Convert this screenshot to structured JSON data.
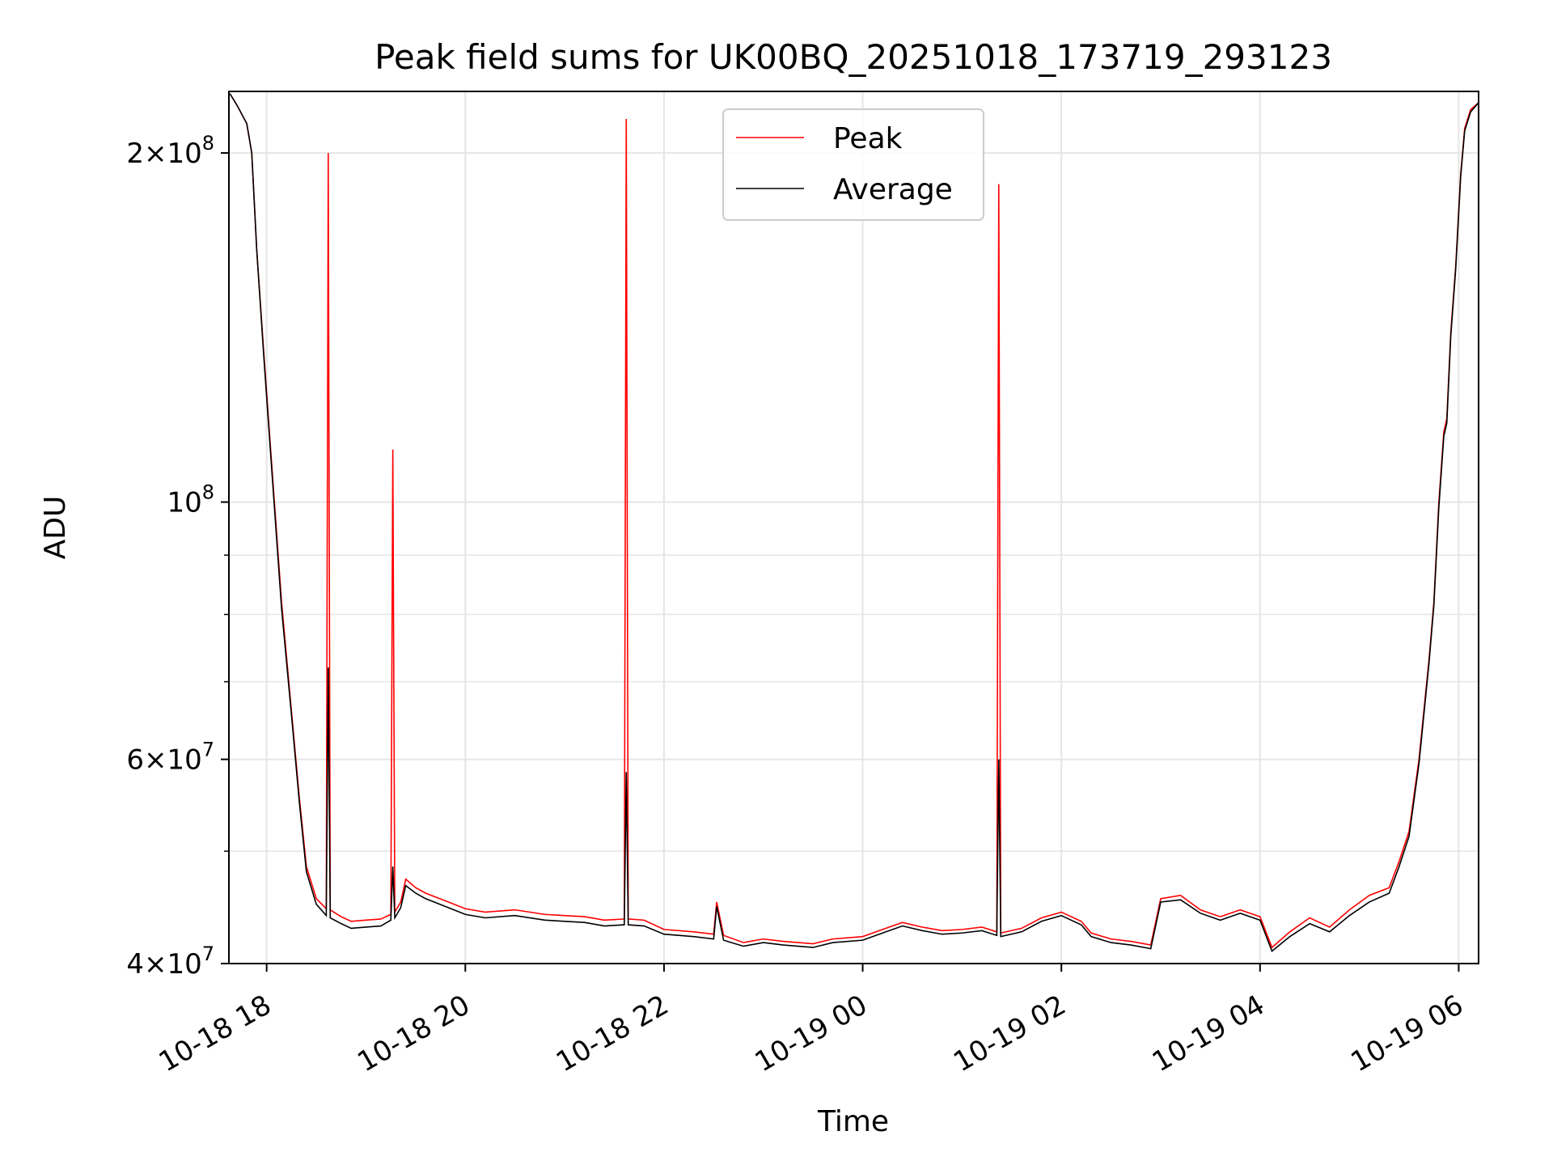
{
  "chart_data": {
    "type": "line",
    "title": "Peak field sums for UK00BQ_20251018_173719_293123",
    "xlabel": "Time",
    "ylabel": "ADU",
    "yscale": "log",
    "x_unit": "hours since 2025-10-18 00:00",
    "xlim": [
      17.62,
      30.2
    ],
    "ylim": [
      40000000,
      226000000
    ],
    "grid": true,
    "legend_position": "upper center",
    "x_ticks": [
      {
        "value": 18,
        "label": "10-18 18"
      },
      {
        "value": 20,
        "label": "10-18 20"
      },
      {
        "value": 22,
        "label": "10-18 22"
      },
      {
        "value": 24,
        "label": "10-19 00"
      },
      {
        "value": 26,
        "label": "10-19 02"
      },
      {
        "value": 28,
        "label": "10-19 04"
      },
      {
        "value": 30,
        "label": "10-19 06"
      }
    ],
    "y_major_ticks": [
      {
        "value": 40000000,
        "mantissa": "4",
        "exponent": "7"
      },
      {
        "value": 60000000,
        "mantissa": "6",
        "exponent": "7"
      },
      {
        "value": 100000000,
        "mantissa": "",
        "exponent": "8"
      },
      {
        "value": 200000000,
        "mantissa": "2",
        "exponent": "8"
      }
    ],
    "y_minor_gridlines": [
      50000000,
      70000000,
      80000000,
      90000000
    ],
    "series": [
      {
        "name": "Peak",
        "color": "#ff0000",
        "points": [
          [
            17.63,
            225000000
          ],
          [
            17.7,
            220000000
          ],
          [
            17.8,
            212000000
          ],
          [
            17.85,
            200000000
          ],
          [
            17.9,
            165000000
          ],
          [
            17.97,
            135000000
          ],
          [
            18.05,
            108000000
          ],
          [
            18.15,
            82000000
          ],
          [
            18.25,
            66000000
          ],
          [
            18.33,
            55500000
          ],
          [
            18.4,
            48500000
          ],
          [
            18.5,
            45500000
          ],
          [
            18.6,
            44600000
          ],
          [
            18.62,
            200000000
          ],
          [
            18.64,
            44500000
          ],
          [
            18.75,
            43900000
          ],
          [
            18.85,
            43500000
          ],
          [
            19.0,
            43600000
          ],
          [
            19.15,
            43700000
          ],
          [
            19.25,
            44100000
          ],
          [
            19.27,
            111000000
          ],
          [
            19.29,
            44300000
          ],
          [
            19.35,
            45200000
          ],
          [
            19.4,
            47300000
          ],
          [
            19.5,
            46500000
          ],
          [
            19.6,
            46000000
          ],
          [
            19.8,
            45300000
          ],
          [
            20.0,
            44600000
          ],
          [
            20.2,
            44300000
          ],
          [
            20.5,
            44500000
          ],
          [
            20.8,
            44100000
          ],
          [
            21.0,
            44000000
          ],
          [
            21.2,
            43900000
          ],
          [
            21.4,
            43600000
          ],
          [
            21.6,
            43700000
          ],
          [
            21.62,
            214000000
          ],
          [
            21.64,
            43700000
          ],
          [
            21.8,
            43600000
          ],
          [
            22.0,
            42800000
          ],
          [
            22.3,
            42600000
          ],
          [
            22.5,
            42400000
          ],
          [
            22.53,
            45200000
          ],
          [
            22.6,
            42300000
          ],
          [
            22.8,
            41700000
          ],
          [
            23.0,
            42000000
          ],
          [
            23.2,
            41800000
          ],
          [
            23.5,
            41600000
          ],
          [
            23.7,
            42000000
          ],
          [
            24.0,
            42200000
          ],
          [
            24.2,
            42800000
          ],
          [
            24.4,
            43400000
          ],
          [
            24.6,
            43000000
          ],
          [
            24.8,
            42700000
          ],
          [
            25.0,
            42800000
          ],
          [
            25.2,
            43000000
          ],
          [
            25.35,
            42600000
          ],
          [
            25.37,
            188000000
          ],
          [
            25.39,
            42500000
          ],
          [
            25.6,
            42900000
          ],
          [
            25.8,
            43800000
          ],
          [
            26.0,
            44300000
          ],
          [
            26.2,
            43500000
          ],
          [
            26.3,
            42500000
          ],
          [
            26.5,
            42000000
          ],
          [
            26.7,
            41800000
          ],
          [
            26.9,
            41500000
          ],
          [
            27.0,
            45500000
          ],
          [
            27.2,
            45800000
          ],
          [
            27.4,
            44500000
          ],
          [
            27.6,
            43900000
          ],
          [
            27.8,
            44500000
          ],
          [
            28.0,
            43900000
          ],
          [
            28.12,
            41300000
          ],
          [
            28.3,
            42600000
          ],
          [
            28.5,
            43800000
          ],
          [
            28.7,
            43000000
          ],
          [
            28.9,
            44500000
          ],
          [
            29.1,
            45800000
          ],
          [
            29.3,
            46500000
          ],
          [
            29.4,
            49000000
          ],
          [
            29.5,
            52000000
          ],
          [
            29.6,
            60000000
          ],
          [
            29.7,
            73000000
          ],
          [
            29.75,
            82000000
          ],
          [
            29.8,
            100000000
          ],
          [
            29.85,
            115000000
          ],
          [
            29.88,
            118000000
          ],
          [
            29.92,
            140000000
          ],
          [
            29.97,
            160000000
          ],
          [
            30.02,
            192000000
          ],
          [
            30.06,
            210000000
          ],
          [
            30.12,
            218000000
          ],
          [
            30.2,
            221000000
          ]
        ]
      },
      {
        "name": "Average",
        "color": "#000000",
        "points": [
          [
            17.63,
            225000000
          ],
          [
            17.7,
            220000000
          ],
          [
            17.8,
            212000000
          ],
          [
            17.85,
            200000000
          ],
          [
            17.9,
            165000000
          ],
          [
            17.97,
            134000000
          ],
          [
            18.05,
            107000000
          ],
          [
            18.15,
            81000000
          ],
          [
            18.25,
            65500000
          ],
          [
            18.33,
            55000000
          ],
          [
            18.4,
            48000000
          ],
          [
            18.5,
            45000000
          ],
          [
            18.6,
            44000000
          ],
          [
            18.62,
            72000000
          ],
          [
            18.64,
            43800000
          ],
          [
            18.75,
            43300000
          ],
          [
            18.85,
            42900000
          ],
          [
            19.0,
            43000000
          ],
          [
            19.15,
            43100000
          ],
          [
            19.25,
            43600000
          ],
          [
            19.27,
            48500000
          ],
          [
            19.29,
            43800000
          ],
          [
            19.35,
            44700000
          ],
          [
            19.4,
            46700000
          ],
          [
            19.5,
            46000000
          ],
          [
            19.6,
            45500000
          ],
          [
            19.8,
            44800000
          ],
          [
            20.0,
            44100000
          ],
          [
            20.2,
            43800000
          ],
          [
            20.5,
            44000000
          ],
          [
            20.8,
            43600000
          ],
          [
            21.0,
            43500000
          ],
          [
            21.2,
            43400000
          ],
          [
            21.4,
            43100000
          ],
          [
            21.6,
            43200000
          ],
          [
            21.62,
            58500000
          ],
          [
            21.64,
            43200000
          ],
          [
            21.8,
            43100000
          ],
          [
            22.0,
            42400000
          ],
          [
            22.3,
            42200000
          ],
          [
            22.5,
            42000000
          ],
          [
            22.53,
            44800000
          ],
          [
            22.6,
            41900000
          ],
          [
            22.8,
            41400000
          ],
          [
            23.0,
            41700000
          ],
          [
            23.2,
            41500000
          ],
          [
            23.5,
            41300000
          ],
          [
            23.7,
            41700000
          ],
          [
            24.0,
            41900000
          ],
          [
            24.2,
            42500000
          ],
          [
            24.4,
            43100000
          ],
          [
            24.6,
            42700000
          ],
          [
            24.8,
            42400000
          ],
          [
            25.0,
            42500000
          ],
          [
            25.2,
            42700000
          ],
          [
            25.35,
            42300000
          ],
          [
            25.37,
            60000000
          ],
          [
            25.39,
            42200000
          ],
          [
            25.6,
            42600000
          ],
          [
            25.8,
            43500000
          ],
          [
            26.0,
            44000000
          ],
          [
            26.2,
            43200000
          ],
          [
            26.3,
            42200000
          ],
          [
            26.5,
            41700000
          ],
          [
            26.7,
            41500000
          ],
          [
            26.9,
            41200000
          ],
          [
            27.0,
            45200000
          ],
          [
            27.2,
            45400000
          ],
          [
            27.4,
            44200000
          ],
          [
            27.6,
            43600000
          ],
          [
            27.8,
            44200000
          ],
          [
            28.0,
            43600000
          ],
          [
            28.12,
            41000000
          ],
          [
            28.3,
            42200000
          ],
          [
            28.5,
            43300000
          ],
          [
            28.7,
            42600000
          ],
          [
            28.9,
            44000000
          ],
          [
            29.1,
            45200000
          ],
          [
            29.3,
            46000000
          ],
          [
            29.4,
            48500000
          ],
          [
            29.5,
            51500000
          ],
          [
            29.6,
            59500000
          ],
          [
            29.7,
            72500000
          ],
          [
            29.75,
            81500000
          ],
          [
            29.8,
            99000000
          ],
          [
            29.85,
            114000000
          ],
          [
            29.88,
            117000000
          ],
          [
            29.92,
            139000000
          ],
          [
            29.97,
            159000000
          ],
          [
            30.02,
            191000000
          ],
          [
            30.06,
            209000000
          ],
          [
            30.12,
            217000000
          ],
          [
            30.2,
            221000000
          ]
        ]
      }
    ]
  }
}
